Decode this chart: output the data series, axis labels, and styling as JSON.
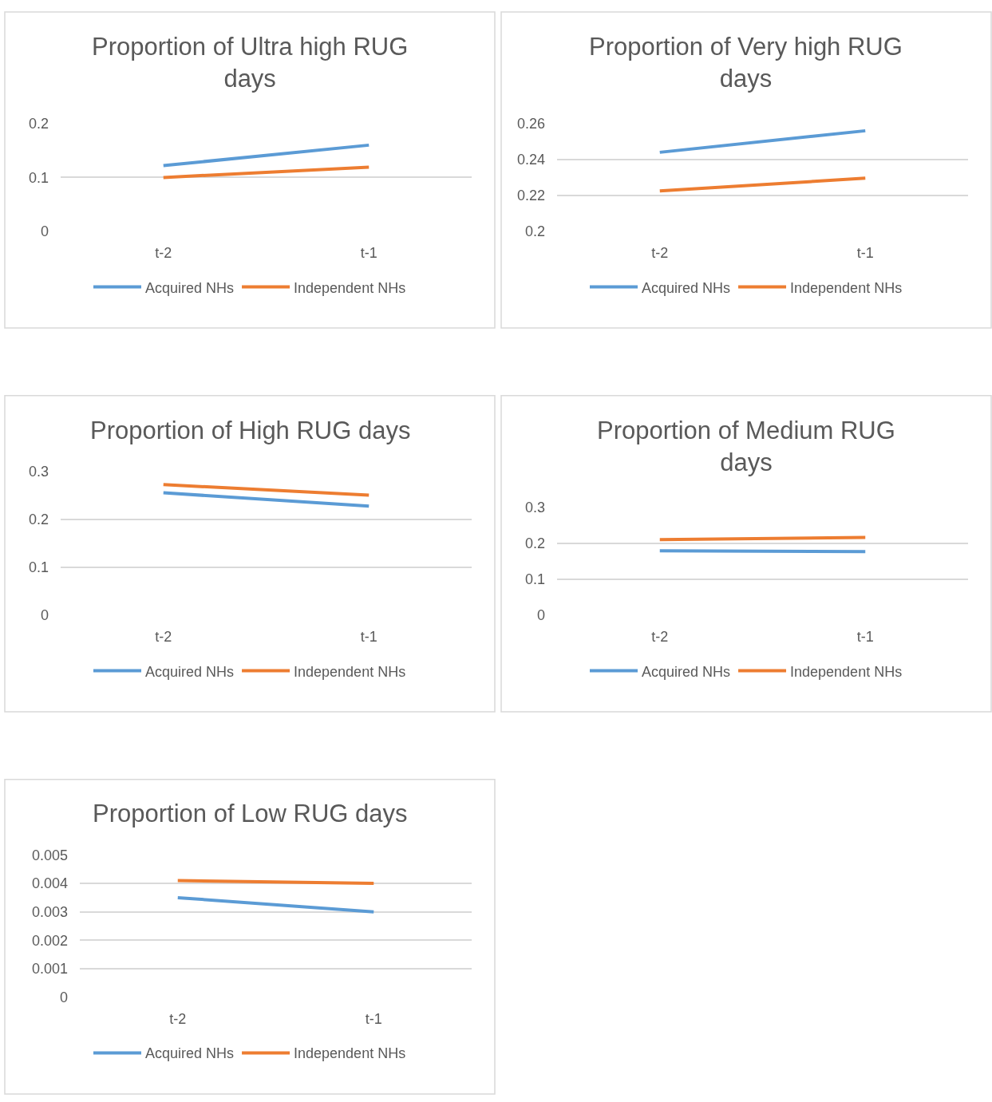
{
  "chart_data": [
    {
      "type": "line",
      "title": "Proportion of Ultra high RUG days",
      "categories": [
        "t-2",
        "t-1"
      ],
      "series": [
        {
          "name": "Acquired NHs",
          "color": "#5b9bd5",
          "values": [
            0.122,
            0.16
          ]
        },
        {
          "name": "Independent NHs",
          "color": "#ed7d31",
          "values": [
            0.1,
            0.119
          ]
        }
      ],
      "ylim": [
        0,
        0.2
      ],
      "yticks": [
        0,
        0.1,
        0.2
      ],
      "grid": "y",
      "legend": "bottom",
      "marker": "none",
      "line_style": "solid"
    },
    {
      "type": "line",
      "title": "Proportion of Very high RUG days",
      "categories": [
        "t-2",
        "t-1"
      ],
      "series": [
        {
          "name": "Acquired NHs",
          "color": "#5b9bd5",
          "values": [
            0.244,
            0.256
          ]
        },
        {
          "name": "Independent NHs",
          "color": "#ed7d31",
          "values": [
            0.2225,
            0.2296
          ]
        }
      ],
      "ylim": [
        0.2,
        0.26
      ],
      "yticks": [
        0.2,
        0.22,
        0.24,
        0.26
      ],
      "grid": "y",
      "legend": "bottom",
      "marker": "none",
      "line_style": "solid"
    },
    {
      "type": "line",
      "title": "Proportion of High RUG days",
      "categories": [
        "t-2",
        "t-1"
      ],
      "series": [
        {
          "name": "Acquired NHs",
          "color": "#5b9bd5",
          "values": [
            0.255,
            0.227
          ]
        },
        {
          "name": "Independent NHs",
          "color": "#ed7d31",
          "values": [
            0.272,
            0.25
          ]
        }
      ],
      "ylim": [
        0,
        0.3
      ],
      "yticks": [
        0,
        0.1,
        0.2,
        0.3
      ],
      "grid": "y",
      "legend": "bottom",
      "marker": "none",
      "line_style": "solid"
    },
    {
      "type": "line",
      "title": "Proportion of Medium RUG days",
      "categories": [
        "t-2",
        "t-1"
      ],
      "series": [
        {
          "name": "Acquired NHs",
          "color": "#5b9bd5",
          "values": [
            0.179,
            0.177
          ]
        },
        {
          "name": "Independent NHs",
          "color": "#ed7d31",
          "values": [
            0.21,
            0.216
          ]
        }
      ],
      "ylim": [
        0,
        0.3
      ],
      "yticks": [
        0,
        0.1,
        0.2,
        0.3
      ],
      "grid": "y",
      "legend": "bottom",
      "marker": "none",
      "line_style": "solid"
    },
    {
      "type": "line",
      "title": "Proportion of Low RUG days",
      "categories": [
        "t-2",
        "t-1"
      ],
      "series": [
        {
          "name": "Acquired NHs",
          "color": "#5b9bd5",
          "values": [
            0.0035,
            0.003
          ]
        },
        {
          "name": "Independent NHs",
          "color": "#ed7d31",
          "values": [
            0.0041,
            0.004
          ]
        }
      ],
      "ylim": [
        0,
        0.005
      ],
      "yticks": [
        0,
        0.001,
        0.002,
        0.003,
        0.004,
        0.005
      ],
      "grid": "y",
      "legend": "bottom",
      "marker": "none",
      "line_style": "solid"
    }
  ]
}
